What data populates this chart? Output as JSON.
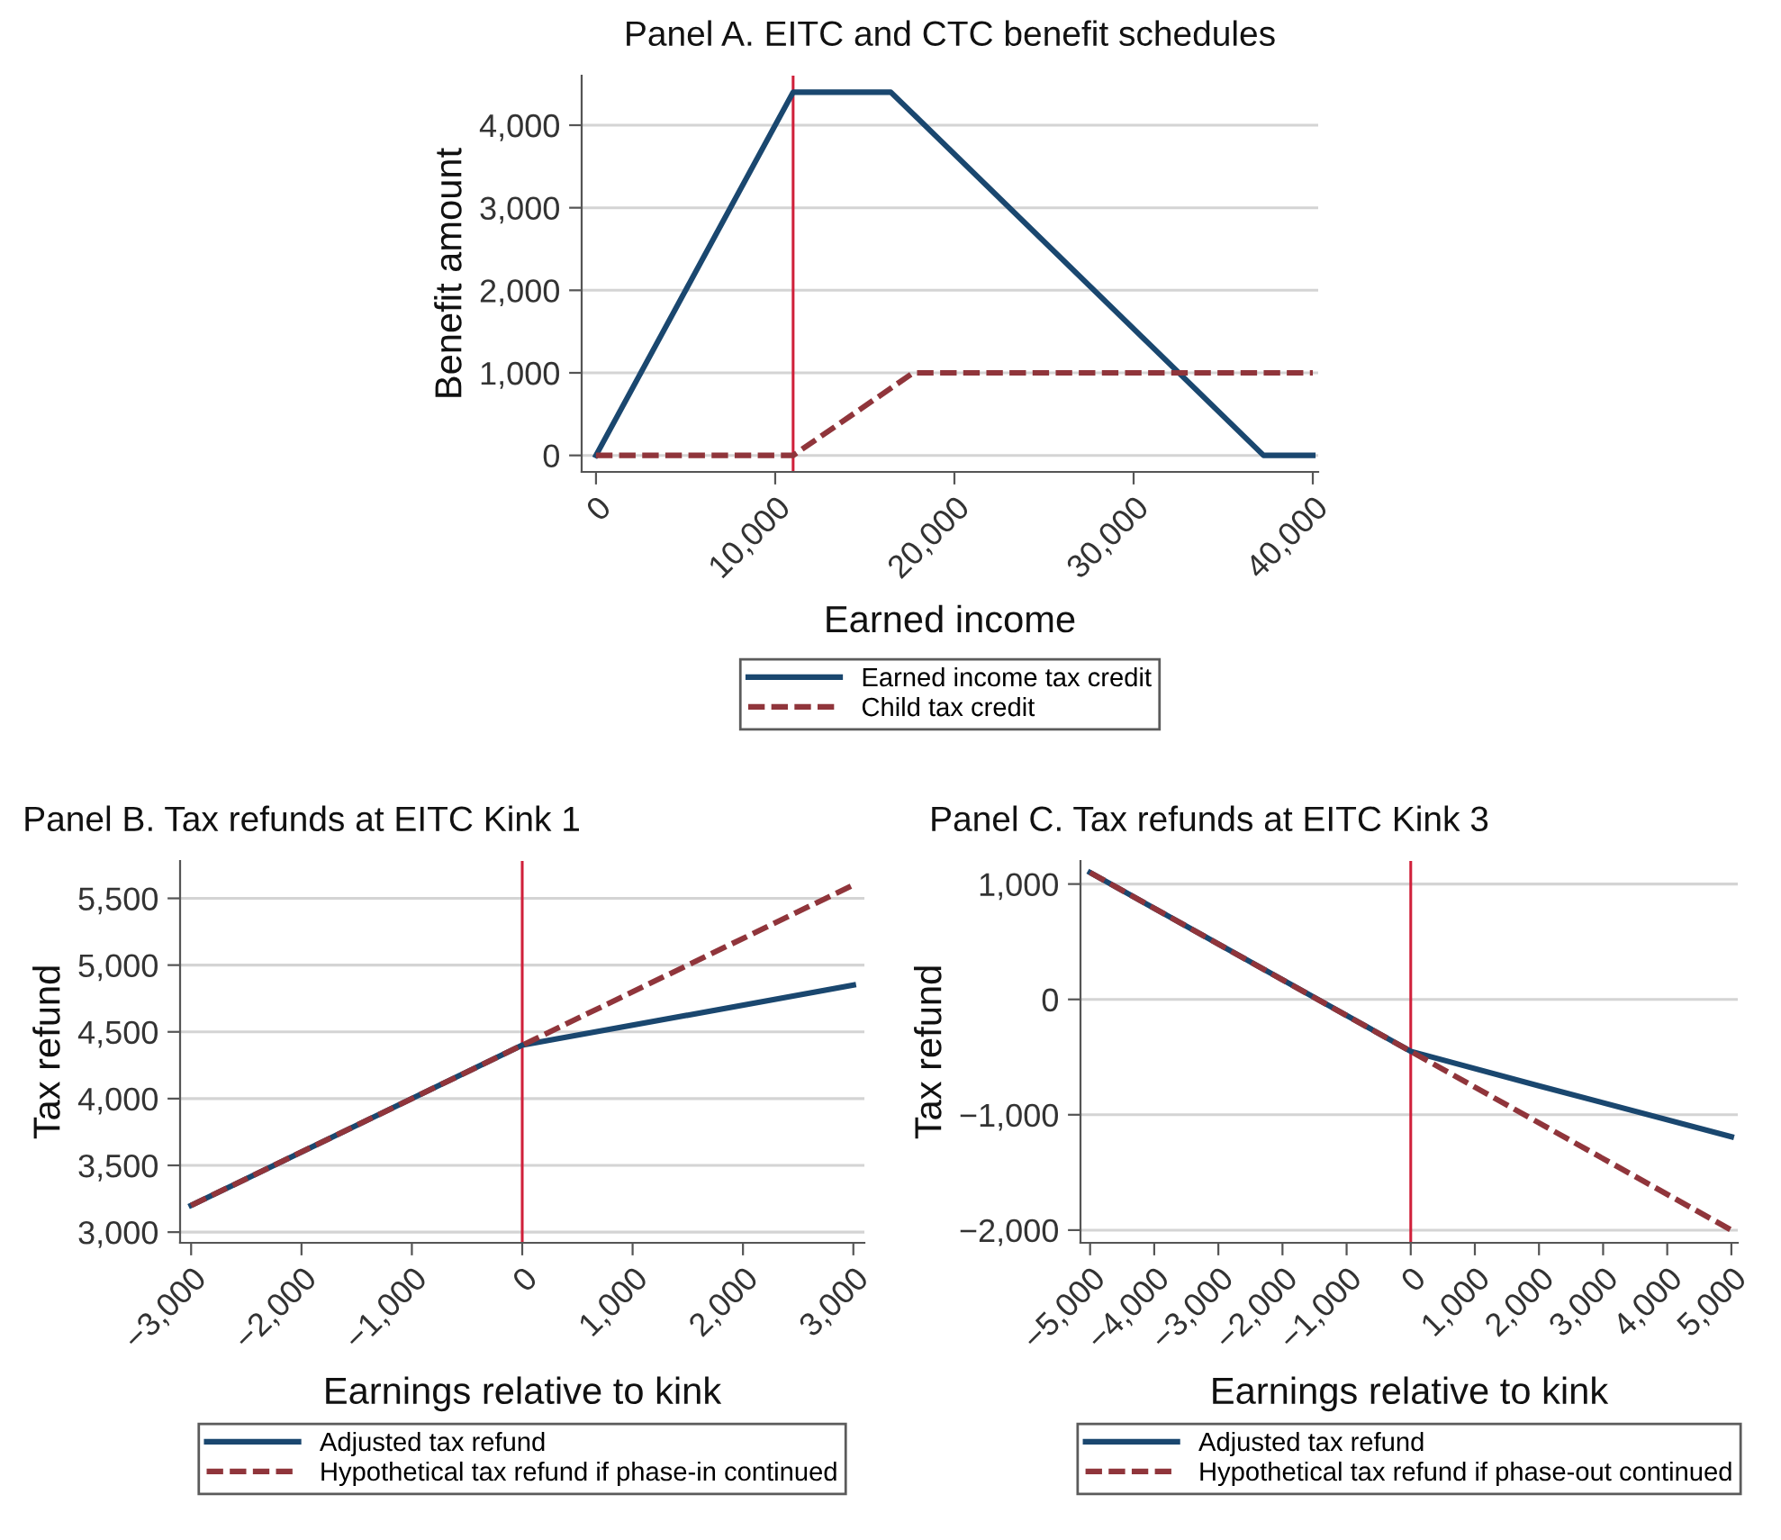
{
  "chart_data": [
    {
      "type": "line",
      "title": "Panel A. EITC and CTC benefit schedules",
      "xlabel": "Earned income",
      "ylabel": "Benefit amount",
      "series": [
        {
          "name": "Earned income tax credit",
          "color": "#1a476f",
          "line_style": "solid",
          "x": [
            0,
            11000,
            16450,
            37250,
            40000
          ],
          "values": [
            0,
            4400,
            4400,
            0,
            0
          ]
        },
        {
          "name": "Child tax credit",
          "color": "#90353b",
          "line_style": "dashed",
          "x": [
            0,
            11000,
            17700,
            40000
          ],
          "values": [
            0,
            0,
            1000,
            1000
          ]
        }
      ],
      "xlim": [
        -800,
        40300
      ],
      "ylim": [
        -200,
        4600
      ],
      "xticks": [
        0,
        {
          "value": 10000,
          "label": "10,000"
        },
        {
          "value": 20000,
          "label": "20,000"
        },
        {
          "value": 30000,
          "label": "30,000"
        },
        {
          "value": 40000,
          "label": "40,000"
        }
      ],
      "yticks": [
        0,
        {
          "value": 1000,
          "label": "1,000"
        },
        {
          "value": 2000,
          "label": "2,000"
        },
        {
          "value": 3000,
          "label": "3,000"
        },
        {
          "value": 4000,
          "label": "4,000"
        }
      ],
      "ref_lines": [
        {
          "axis": "x",
          "value": 11000,
          "color": "#d0203a"
        }
      ],
      "grid": "y",
      "legend": "bottom"
    },
    {
      "type": "line",
      "title": "Panel B. Tax refunds at EITC Kink 1",
      "xlabel": "Earnings relative to kink",
      "ylabel": "Tax refund",
      "series": [
        {
          "name": "Adjusted tax refund",
          "color": "#1a476f",
          "line_style": "solid",
          "x": [
            -3000,
            0,
            3000
          ],
          "values": [
            3200,
            4400,
            4850
          ]
        },
        {
          "name": "Hypothetical tax refund if phase-in continued",
          "color": "#90353b",
          "line_style": "dashed",
          "x": [
            -3000,
            0,
            3000
          ],
          "values": [
            3200,
            4400,
            5600
          ]
        }
      ],
      "xlim": [
        -3100,
        3100
      ],
      "ylim": [
        2920,
        5780
      ],
      "xticks": [
        {
          "value": -3000,
          "label": "−3,000"
        },
        {
          "value": -2000,
          "label": "−2,000"
        },
        {
          "value": -1000,
          "label": "−1,000"
        },
        0,
        {
          "value": 1000,
          "label": "1,000"
        },
        {
          "value": 2000,
          "label": "2,000"
        },
        {
          "value": 3000,
          "label": "3,000"
        }
      ],
      "yticks": [
        {
          "value": 3000,
          "label": "3,000"
        },
        {
          "value": 3500,
          "label": "3,500"
        },
        {
          "value": 4000,
          "label": "4,000"
        },
        {
          "value": 4500,
          "label": "4,500"
        },
        {
          "value": 5000,
          "label": "5,000"
        },
        {
          "value": 5500,
          "label": "5,500"
        }
      ],
      "ref_lines": [
        {
          "axis": "x",
          "value": 0,
          "color": "#d0203a"
        }
      ],
      "grid": "y",
      "legend": "bottom"
    },
    {
      "type": "line",
      "title": "Panel C. Tax refunds at EITC Kink 3",
      "xlabel": "Earnings relative to kink",
      "ylabel": "Tax refund",
      "series": [
        {
          "name": "Adjusted tax refund",
          "color": "#1a476f",
          "line_style": "solid",
          "x": [
            -5000,
            0,
            2000,
            5000
          ],
          "values": [
            1100,
            -450,
            -750,
            -1190
          ]
        },
        {
          "name": "Hypothetical tax refund if phase-out continued",
          "color": "#90353b",
          "line_style": "dashed",
          "x": [
            -5000,
            0,
            5000
          ],
          "values": [
            1100,
            -450,
            -2000
          ]
        }
      ],
      "xlim": [
        -5150,
        5100
      ],
      "ylim": [
        -2110,
        1200
      ],
      "xticks": [
        {
          "value": -5000,
          "label": "−5,000"
        },
        {
          "value": -4000,
          "label": "−4,000"
        },
        {
          "value": -3000,
          "label": "−3,000"
        },
        {
          "value": -2000,
          "label": "−2,000"
        },
        {
          "value": -1000,
          "label": "−1,000"
        },
        0,
        {
          "value": 1000,
          "label": "1,000"
        },
        {
          "value": 2000,
          "label": "2,000"
        },
        {
          "value": 3000,
          "label": "3,000"
        },
        {
          "value": 4000,
          "label": "4,000"
        },
        {
          "value": 5000,
          "label": "5,000"
        }
      ],
      "yticks": [
        {
          "value": -2000,
          "label": "−2,000"
        },
        {
          "value": -1000,
          "label": "−1,000"
        },
        0,
        {
          "value": 1000,
          "label": "1,000"
        }
      ],
      "ref_lines": [
        {
          "axis": "x",
          "value": 0,
          "color": "#d0203a"
        }
      ],
      "grid": "y",
      "legend": "bottom"
    }
  ]
}
